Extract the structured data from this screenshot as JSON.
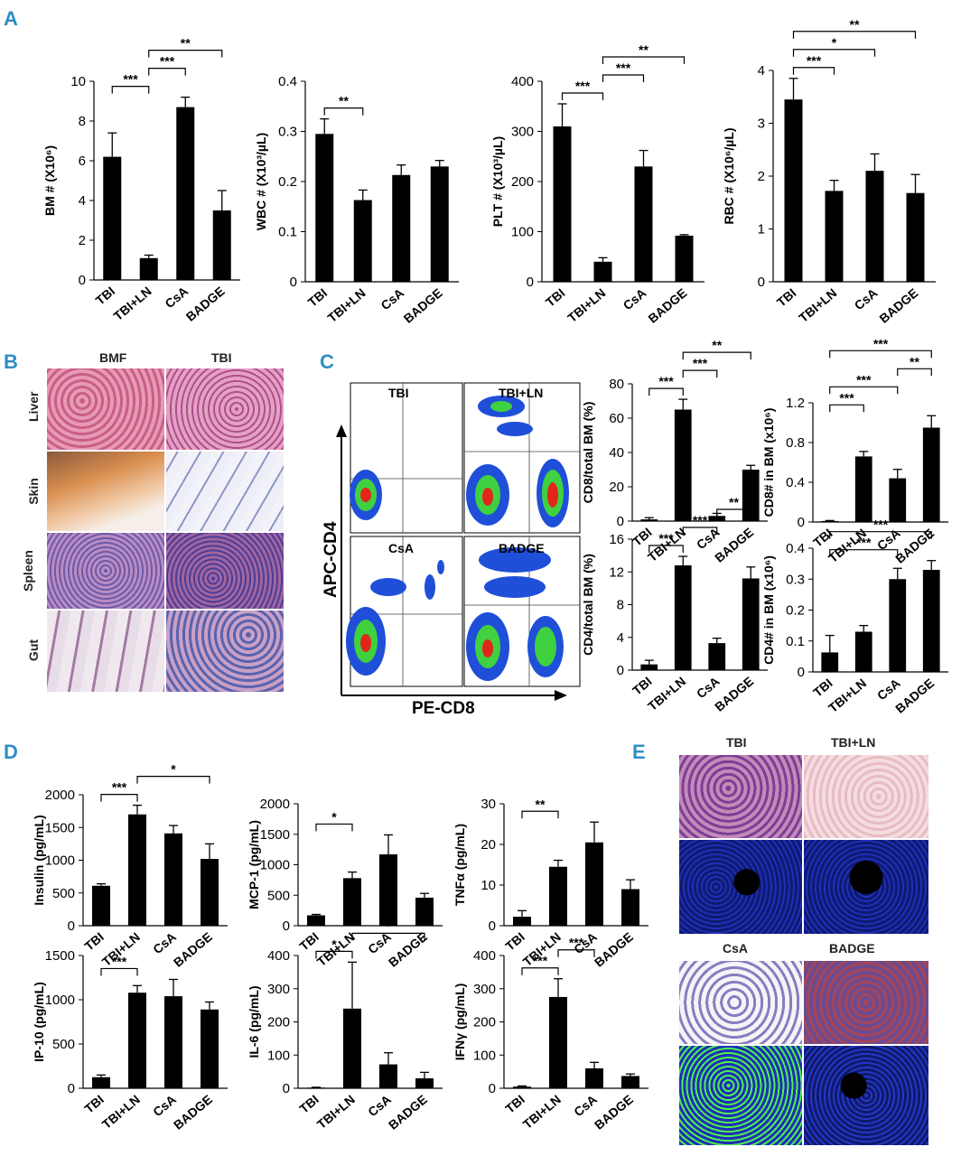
{
  "panel_labels": {
    "a": "A",
    "b": "B",
    "c": "C",
    "d": "D",
    "e": "E"
  },
  "categories": [
    "TBI",
    "TBI+LN",
    "CsA",
    "BADGE"
  ],
  "histology_b": {
    "col1": "BMF",
    "col2": "TBI",
    "rows": [
      "Liver",
      "Skin",
      "Spleen",
      "Gut"
    ]
  },
  "flow": {
    "plots": [
      "TBI",
      "TBI+LN",
      "CsA",
      "BADGE"
    ],
    "ylabel": "APC-CD4",
    "xlabel": "PE-CD8"
  },
  "histology_e": {
    "labels": [
      "TBI",
      "TBI+LN",
      "CsA",
      "BADGE"
    ]
  },
  "colors": {
    "panel_label": "#2e8fc4",
    "bar": "#000000",
    "flow_blue": "#1f4fd8",
    "flow_green": "#3fd13f",
    "flow_red": "#e3261c",
    "dapi": "#1e2fb8",
    "fitc": "#4df04d"
  },
  "chart_data": [
    {
      "id": "A1",
      "type": "bar",
      "ylabel": "BM # (X10⁶)",
      "ylim": [
        0,
        10
      ],
      "yticks": [
        "0",
        "2",
        "4",
        "6",
        "8",
        "10"
      ],
      "categories": [
        "TBI",
        "TBI+LN",
        "CsA",
        "BADGE"
      ],
      "values": [
        6.2,
        1.1,
        8.7,
        3.5
      ],
      "errors": [
        1.2,
        0.15,
        0.5,
        1.0
      ],
      "significance": [
        {
          "from": 0,
          "to": 1,
          "label": "***"
        },
        {
          "from": 1,
          "to": 2,
          "label": "***"
        },
        {
          "from": 1,
          "to": 3,
          "label": "**"
        }
      ]
    },
    {
      "id": "A2",
      "type": "bar",
      "ylabel": "WBC # (X10³/µL)",
      "ylim": [
        0,
        0.4
      ],
      "yticks": [
        "0",
        "0.1",
        "0.2",
        "0.3",
        "0.4"
      ],
      "categories": [
        "TBI",
        "TBI+LN",
        "CsA",
        "BADGE"
      ],
      "values": [
        0.295,
        0.163,
        0.213,
        0.23
      ],
      "errors": [
        0.03,
        0.02,
        0.02,
        0.012
      ],
      "significance": [
        {
          "from": 0,
          "to": 1,
          "label": "**"
        }
      ]
    },
    {
      "id": "A3",
      "type": "bar",
      "ylabel": "PLT # (X10³/µL)",
      "ylim": [
        0,
        400
      ],
      "yticks": [
        "0",
        "100",
        "200",
        "300",
        "400"
      ],
      "categories": [
        "TBI",
        "TBI+LN",
        "CsA",
        "BADGE"
      ],
      "values": [
        310,
        40,
        230,
        92
      ],
      "errors": [
        45,
        8,
        32,
        2
      ],
      "significance": [
        {
          "from": 0,
          "to": 1,
          "label": "***"
        },
        {
          "from": 1,
          "to": 2,
          "label": "***"
        },
        {
          "from": 1,
          "to": 3,
          "label": "**"
        }
      ]
    },
    {
      "id": "A4",
      "type": "bar",
      "ylabel": "RBC # (X10⁶/µL)",
      "ylim": [
        0,
        4
      ],
      "yticks": [
        "0",
        "1",
        "2",
        "3",
        "4"
      ],
      "categories": [
        "TBI",
        "TBI+LN",
        "CsA",
        "BADGE"
      ],
      "values": [
        3.45,
        1.72,
        2.1,
        1.68
      ],
      "errors": [
        0.4,
        0.2,
        0.32,
        0.35
      ],
      "significance": [
        {
          "from": 0,
          "to": 1,
          "label": "***"
        },
        {
          "from": 0,
          "to": 2,
          "label": "*"
        },
        {
          "from": 0,
          "to": 3,
          "label": "**"
        }
      ]
    },
    {
      "id": "C1",
      "type": "bar",
      "ylabel": "CD8/total BM (%)",
      "ylim": [
        0,
        80
      ],
      "yticks": [
        "0",
        "20",
        "40",
        "60",
        "80"
      ],
      "categories": [
        "TBI",
        "TBI+LN",
        "CsA",
        "BADGE"
      ],
      "values": [
        1,
        65,
        3,
        30
      ],
      "errors": [
        1,
        6,
        1.5,
        2.5
      ],
      "significance": [
        {
          "from": 0,
          "to": 1,
          "label": "***"
        },
        {
          "from": 1,
          "to": 2,
          "label": "***"
        },
        {
          "from": 1,
          "to": 3,
          "label": "**"
        }
      ]
    },
    {
      "id": "C2",
      "type": "bar",
      "ylabel": "CD8# in BM (x10⁶)",
      "ylim": [
        0,
        1.2
      ],
      "yticks": [
        "0",
        "0.4",
        "0.8",
        "1.2"
      ],
      "categories": [
        "TBI",
        "TBI+LN",
        "CsA",
        "BADGE"
      ],
      "values": [
        0.01,
        0.66,
        0.44,
        0.95
      ],
      "errors": [
        0.005,
        0.05,
        0.09,
        0.12
      ],
      "significance": [
        {
          "from": 0,
          "to": 1,
          "label": "***"
        },
        {
          "from": 0,
          "to": 2,
          "label": "***"
        },
        {
          "from": 2,
          "to": 3,
          "label": "**"
        },
        {
          "from": 0,
          "to": 3,
          "label": "***"
        }
      ]
    },
    {
      "id": "C3",
      "type": "bar",
      "ylabel": "CD4/total BM (%)",
      "ylim": [
        0,
        16
      ],
      "yticks": [
        "0",
        "4",
        "8",
        "12",
        "16"
      ],
      "categories": [
        "TBI",
        "TBI+LN",
        "CsA",
        "BADGE"
      ],
      "values": [
        0.7,
        12.8,
        3.3,
        11.2
      ],
      "errors": [
        0.5,
        1.1,
        0.6,
        1.4
      ],
      "significance": [
        {
          "from": 0,
          "to": 1,
          "label": "***"
        },
        {
          "from": 1,
          "to": 2,
          "label": "***"
        },
        {
          "from": 2,
          "to": 3,
          "label": "**"
        }
      ]
    },
    {
      "id": "C4",
      "type": "bar",
      "ylabel": "CD4# in BM (x10⁶)",
      "ylim": [
        0,
        0.4
      ],
      "yticks": [
        "0",
        "0.1",
        "0.2",
        "0.3",
        "0.4"
      ],
      "categories": [
        "TBI",
        "TBI+LN",
        "CsA",
        "BADGE"
      ],
      "values": [
        0.063,
        0.13,
        0.3,
        0.33
      ],
      "errors": [
        0.055,
        0.02,
        0.035,
        0.03
      ],
      "significance": [
        {
          "from": 0,
          "to": 2,
          "label": "***",
          "group": [
            0,
            1
          ]
        },
        {
          "from": 0,
          "to": 3,
          "label": "***",
          "group": [
            0,
            1
          ]
        }
      ]
    },
    {
      "id": "D1",
      "type": "bar",
      "ylabel": "Insulin (pg/mL)",
      "ylim": [
        0,
        2000
      ],
      "yticks": [
        "0",
        "500",
        "1000",
        "1500",
        "2000"
      ],
      "categories": [
        "TBI",
        "TBI+LN",
        "CsA",
        "BADGE"
      ],
      "values": [
        610,
        1700,
        1410,
        1020
      ],
      "errors": [
        30,
        140,
        120,
        230
      ],
      "significance": [
        {
          "from": 0,
          "to": 1,
          "label": "***"
        },
        {
          "from": 1,
          "to": 3,
          "label": "*"
        }
      ]
    },
    {
      "id": "D2",
      "type": "bar",
      "ylabel": "MCP-1 (pg/mL)",
      "ylim": [
        0,
        2000
      ],
      "yticks": [
        "0",
        "500",
        "1000",
        "1500",
        "2000"
      ],
      "categories": [
        "TBI",
        "TBI+LN",
        "CsA",
        "BADGE"
      ],
      "values": [
        170,
        780,
        1170,
        460
      ],
      "errors": [
        15,
        100,
        320,
        70
      ],
      "significance": [
        {
          "from": 0,
          "to": 1,
          "label": "*"
        }
      ]
    },
    {
      "id": "D3",
      "type": "bar",
      "ylabel": "TNFα (pg/mL)",
      "ylim": [
        0,
        30
      ],
      "yticks": [
        "0",
        "10",
        "20",
        "30"
      ],
      "categories": [
        "TBI",
        "TBI+LN",
        "CsA",
        "BADGE"
      ],
      "values": [
        2.2,
        14.5,
        20.5,
        9
      ],
      "errors": [
        1.5,
        1.6,
        5,
        2.3
      ],
      "significance": [
        {
          "from": 0,
          "to": 1,
          "label": "**"
        }
      ]
    },
    {
      "id": "D4",
      "type": "bar",
      "ylabel": "IP-10 (pg/mL)",
      "ylim": [
        0,
        1500
      ],
      "yticks": [
        "0",
        "500",
        "1000",
        "1500"
      ],
      "categories": [
        "TBI",
        "TBI+LN",
        "CsA",
        "BADGE"
      ],
      "values": [
        125,
        1080,
        1040,
        890
      ],
      "errors": [
        25,
        80,
        190,
        85
      ],
      "significance": [
        {
          "from": 0,
          "to": 1,
          "label": "***"
        }
      ]
    },
    {
      "id": "D5",
      "type": "bar",
      "ylabel": "IL-6 (pg/mL)",
      "ylim": [
        0,
        400
      ],
      "yticks": [
        "0",
        "100",
        "200",
        "300",
        "400"
      ],
      "categories": [
        "TBI",
        "TBI+LN",
        "CsA",
        "BADGE"
      ],
      "values": [
        2,
        240,
        72,
        30
      ],
      "errors": [
        1,
        140,
        35,
        18
      ],
      "significance": [
        {
          "from": 0,
          "to": 1,
          "label": "*"
        },
        {
          "from": 1,
          "to": 3,
          "label": "*"
        }
      ]
    },
    {
      "id": "D6",
      "type": "bar",
      "ylabel": "IFNγ (pg/mL)",
      "ylim": [
        0,
        400
      ],
      "yticks": [
        "0",
        "100",
        "200",
        "300",
        "400"
      ],
      "categories": [
        "TBI",
        "TBI+LN",
        "CsA",
        "BADGE"
      ],
      "values": [
        5,
        275,
        60,
        37
      ],
      "errors": [
        2,
        55,
        18,
        6
      ],
      "significance": [
        {
          "from": 0,
          "to": 1,
          "label": "***"
        },
        {
          "from": 1,
          "to": 2,
          "label": "***",
          "group": [
            2,
            3
          ]
        }
      ]
    }
  ]
}
